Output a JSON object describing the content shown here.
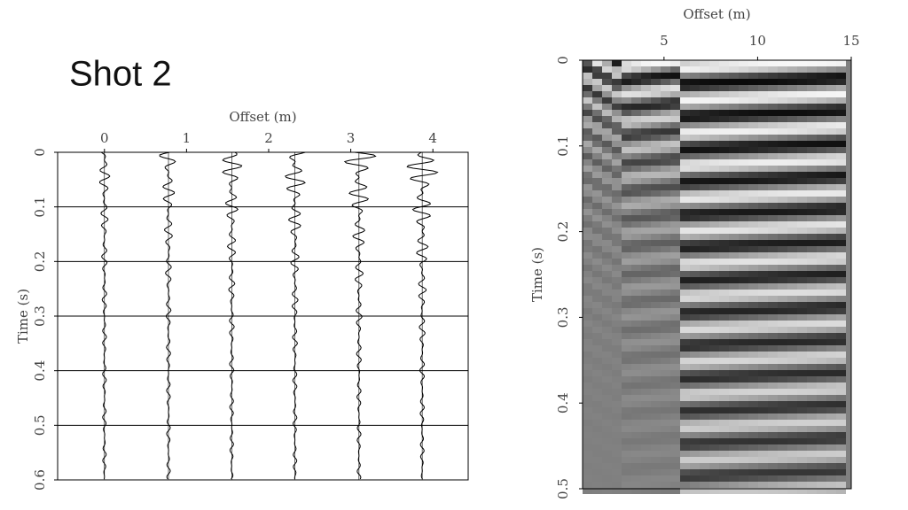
{
  "title": "Shot 2",
  "chart_data": [
    {
      "type": "wiggle",
      "xlabel": "Offset (m)",
      "ylabel": "Time (s)",
      "xlim": [
        -0.57,
        4.43
      ],
      "ylim": [
        0,
        0.6
      ],
      "y_reversed": true,
      "xticks": [
        0,
        1,
        2,
        3,
        4
      ],
      "yticks": [
        0,
        0.1,
        0.2,
        0.3,
        0.4,
        0.5,
        0.6
      ],
      "grid": true
    },
    {
      "type": "image",
      "xlabel": "Offset (m)",
      "ylabel": "Time (s)",
      "xlim": [
        0.65,
        15
      ],
      "ylim": [
        0,
        0.5
      ],
      "y_reversed": true,
      "xticks": [
        5,
        10,
        15
      ],
      "yticks": [
        0,
        0.1,
        0.2,
        0.3,
        0.4,
        0.5
      ],
      "grid": false
    }
  ]
}
